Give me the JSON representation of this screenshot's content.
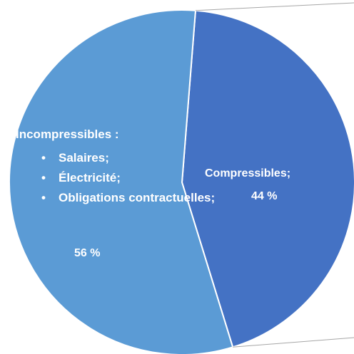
{
  "chart_data": {
    "type": "pie",
    "slices": [
      {
        "label": "Compressibles;",
        "value": 44,
        "value_label": "44 %",
        "color": "#4472C4"
      },
      {
        "label": "Incompressibles :",
        "items": [
          "Salaires;",
          "Électricité;",
          "Obligations contractuelles;"
        ],
        "value": 56,
        "value_label": "56 %",
        "color": "#5B9BD5"
      }
    ],
    "exploded": "Compressibles;",
    "legend": "none"
  }
}
